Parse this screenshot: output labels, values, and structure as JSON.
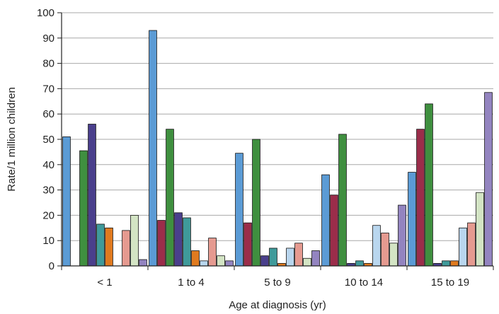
{
  "chart_data": {
    "type": "bar",
    "title": "",
    "xlabel": "Age at diagnosis (yr)",
    "ylabel": "Rate/1 million children",
    "ylim": [
      0,
      100
    ],
    "yticks": [
      0,
      10,
      20,
      30,
      40,
      50,
      60,
      70,
      80,
      90,
      100
    ],
    "grid": true,
    "legend": "none",
    "categories": [
      "< 1",
      "1 to 4",
      "5 to 9",
      "10 to 14",
      "15 to 19"
    ],
    "series": [
      {
        "color": "#5b9bd5",
        "values": [
          51,
          93,
          44.5,
          36,
          37
        ]
      },
      {
        "color": "#9b2d4a",
        "values": [
          0,
          18,
          17,
          28,
          54
        ]
      },
      {
        "color": "#3f8f3f",
        "values": [
          45.5,
          54,
          50,
          52,
          64
        ]
      },
      {
        "color": "#4a3f8c",
        "values": [
          56,
          21,
          4,
          1,
          1
        ]
      },
      {
        "color": "#3f9a9a",
        "values": [
          16.5,
          19,
          7,
          2,
          2
        ]
      },
      {
        "color": "#e07a1f",
        "values": [
          15,
          6,
          1,
          1,
          2
        ]
      },
      {
        "color": "#b9d6ee",
        "values": [
          0,
          2,
          7,
          16,
          15
        ]
      },
      {
        "color": "#e59a90",
        "values": [
          14,
          11,
          9,
          13,
          17
        ]
      },
      {
        "color": "#d3e4c4",
        "values": [
          20,
          4,
          3,
          9,
          29
        ]
      },
      {
        "color": "#9384c0",
        "values": [
          2.5,
          2,
          6,
          24,
          68.5
        ]
      }
    ]
  }
}
